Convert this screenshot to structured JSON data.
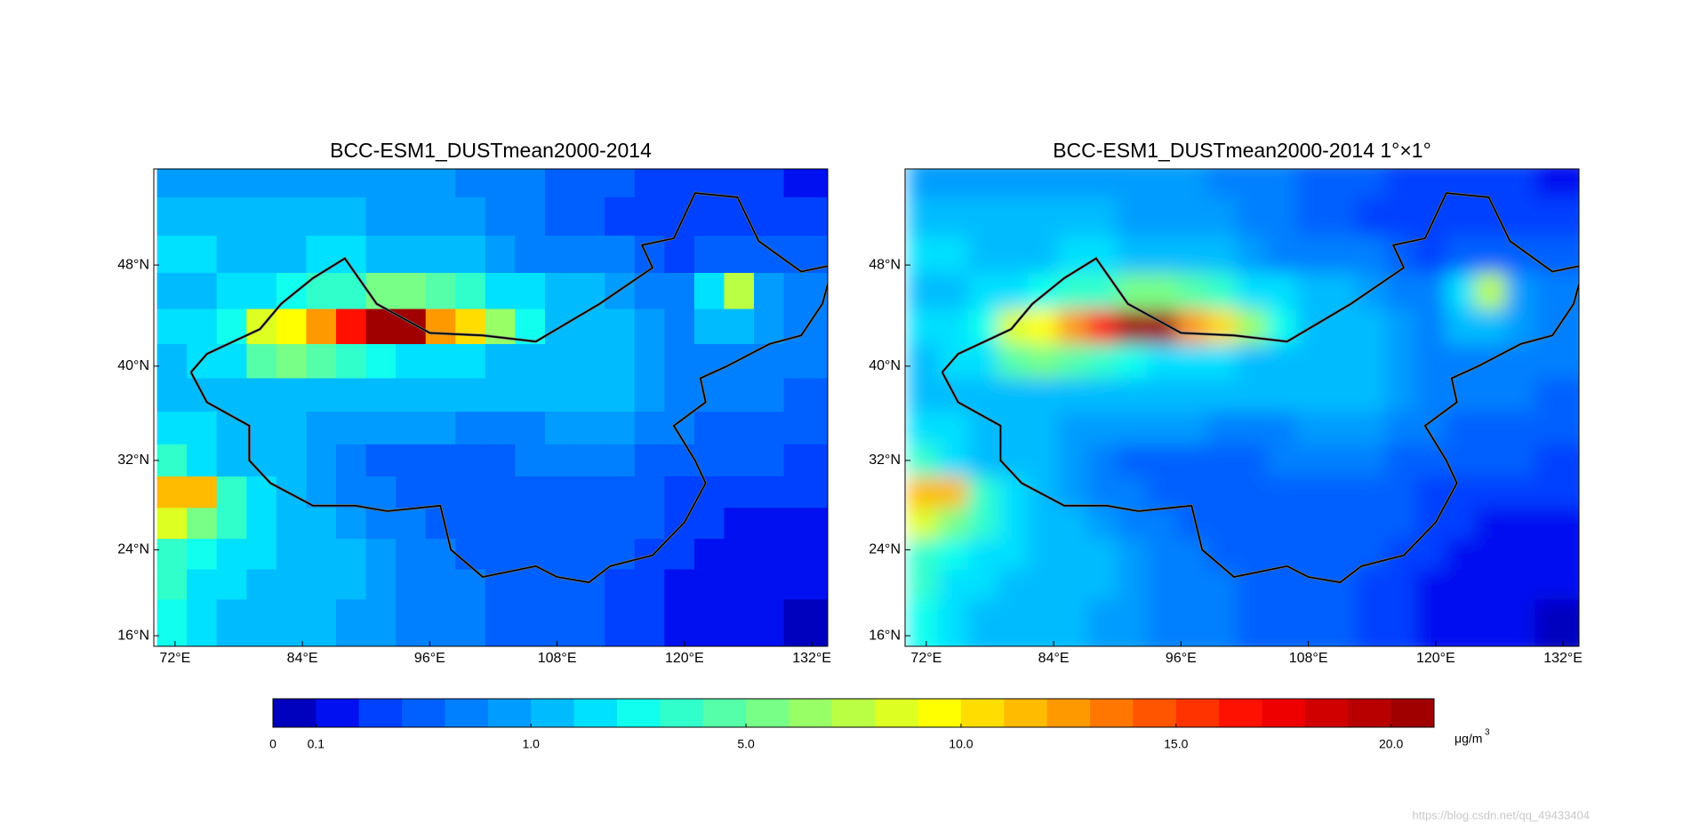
{
  "map_data": {
    "type": "map",
    "panels": [
      {
        "title": "BCC-ESM1_DUSTmean2000-2014",
        "projection": "miller",
        "smooth": false,
        "xlim": [
          70,
          133.5
        ],
        "ylim": [
          15,
          55
        ],
        "xticks": [
          {
            "value": 72,
            "label": "72°E"
          },
          {
            "value": 84,
            "label": "84°E"
          },
          {
            "value": 96,
            "label": "96°E"
          },
          {
            "value": 108,
            "label": "108°E"
          },
          {
            "value": 120,
            "label": "120°E"
          },
          {
            "value": 132,
            "label": "132°E"
          }
        ],
        "yticks": [
          {
            "value": 16,
            "label": "16°N"
          },
          {
            "value": 24,
            "label": "24°N"
          },
          {
            "value": 32,
            "label": "32°N"
          },
          {
            "value": 40,
            "label": "40°N"
          },
          {
            "value": 48,
            "label": "48°N"
          }
        ],
        "grid": {
          "lon_start": 70.3,
          "lon_step": 2.8125,
          "lat_start": 55.8,
          "lat_step": -2.8,
          "values": [
            [
              0.9,
              0.9,
              0.9,
              0.9,
              0.9,
              0.9,
              0.9,
              0.9,
              0.9,
              0.9,
              0.8,
              0.8,
              0.7,
              0.6,
              0.6,
              0.5,
              0.4,
              0.3,
              0.3,
              0.3,
              0.3,
              0.2,
              0.2
            ],
            [
              1.2,
              1.2,
              1.2,
              1.2,
              1.0,
              1.0,
              1.0,
              0.9,
              0.9,
              0.9,
              0.9,
              0.8,
              0.7,
              0.6,
              0.5,
              0.4,
              0.3,
              0.3,
              0.4,
              0.4,
              0.4,
              0.4,
              0.4
            ],
            [
              2.0,
              2.0,
              1.5,
              1.5,
              1.5,
              1.8,
              1.8,
              1.5,
              1.5,
              1.2,
              1.0,
              0.9,
              0.8,
              0.8,
              0.8,
              0.7,
              0.6,
              0.4,
              0.6,
              0.6,
              0.6,
              0.5,
              0.5
            ],
            [
              1.5,
              1.5,
              2.2,
              2.4,
              2.6,
              3.5,
              4.0,
              5.0,
              5.5,
              4.5,
              3.5,
              2.5,
              1.8,
              1.2,
              1.0,
              0.9,
              0.8,
              0.7,
              2.0,
              7.5,
              0.9,
              0.8,
              0.7
            ],
            [
              2.0,
              2.5,
              3.0,
              8.5,
              9.5,
              12.0,
              16.0,
              21.0,
              21.0,
              12.5,
              10.5,
              6.0,
              3.0,
              1.5,
              1.2,
              1.0,
              0.9,
              0.8,
              1.0,
              1.5,
              0.9,
              0.8,
              0.8
            ],
            [
              1.5,
              2.0,
              2.5,
              4.5,
              5.0,
              4.5,
              4.0,
              3.0,
              2.5,
              2.5,
              2.0,
              1.5,
              1.5,
              1.5,
              1.2,
              1.0,
              0.9,
              0.8,
              0.8,
              0.8,
              0.7,
              0.7,
              0.7
            ],
            [
              1.5,
              1.5,
              1.5,
              1.2,
              1.2,
              1.2,
              1.2,
              1.2,
              1.2,
              1.2,
              1.2,
              1.2,
              1.2,
              1.2,
              1.0,
              1.0,
              0.9,
              0.8,
              0.8,
              0.8,
              0.7,
              0.6,
              0.6
            ],
            [
              2.5,
              1.8,
              1.5,
              1.2,
              1.0,
              0.9,
              0.9,
              0.9,
              0.9,
              0.9,
              0.8,
              0.8,
              0.8,
              0.9,
              0.9,
              0.9,
              0.8,
              0.7,
              0.6,
              0.6,
              0.6,
              0.5,
              0.5
            ],
            [
              3.5,
              2.5,
              1.5,
              1.2,
              1.0,
              0.9,
              0.8,
              0.6,
              0.6,
              0.6,
              0.6,
              0.6,
              0.8,
              0.8,
              0.8,
              0.7,
              0.6,
              0.6,
              0.5,
              0.5,
              0.5,
              0.4,
              0.4
            ],
            [
              11.0,
              11.0,
              4.0,
              2.0,
              1.2,
              0.9,
              0.8,
              0.7,
              0.6,
              0.6,
              0.6,
              0.6,
              0.6,
              0.6,
              0.6,
              0.6,
              0.5,
              0.4,
              0.3,
              0.3,
              0.3,
              0.3,
              0.3
            ],
            [
              8.0,
              5.0,
              3.5,
              2.2,
              1.5,
              1.0,
              0.9,
              0.8,
              0.7,
              0.6,
              0.6,
              0.6,
              0.6,
              0.6,
              0.6,
              0.5,
              0.5,
              0.4,
              0.3,
              0.2,
              0.2,
              0.2,
              0.2
            ],
            [
              4.0,
              3.0,
              2.5,
              1.8,
              1.5,
              1.0,
              1.0,
              0.9,
              0.8,
              0.7,
              0.6,
              0.6,
              0.6,
              0.6,
              0.5,
              0.5,
              0.4,
              0.3,
              0.2,
              0.2,
              0.2,
              0.2,
              0.2
            ],
            [
              4.0,
              2.0,
              1.8,
              1.5,
              1.2,
              1.0,
              1.0,
              0.9,
              0.8,
              0.7,
              0.7,
              0.6,
              0.6,
              0.6,
              0.5,
              0.4,
              0.3,
              0.2,
              0.2,
              0.2,
              0.2,
              0.2,
              0.2
            ],
            [
              3.0,
              1.8,
              1.5,
              1.2,
              1.0,
              1.0,
              0.9,
              0.9,
              0.8,
              0.7,
              0.7,
              0.6,
              0.6,
              0.5,
              0.5,
              0.4,
              0.3,
              0.2,
              0.2,
              0.2,
              0.2,
              0.05,
              0.05
            ],
            [
              3.0,
              1.8,
              1.5,
              1.2,
              1.0,
              1.0,
              0.9,
              0.9,
              0.8,
              0.7,
              0.7,
              0.6,
              0.6,
              0.5,
              0.5,
              0.4,
              0.3,
              0.2,
              0.2,
              0.2,
              0.2,
              0.05,
              0.05
            ]
          ]
        }
      },
      {
        "title": "BCC-ESM1_DUSTmean2000-2014 1°×1°",
        "projection": "miller",
        "smooth": true,
        "xlim": [
          70,
          133.5
        ],
        "ylim": [
          15,
          55
        ],
        "xticks": [
          {
            "value": 72,
            "label": "72°E"
          },
          {
            "value": 84,
            "label": "84°E"
          },
          {
            "value": 96,
            "label": "96°E"
          },
          {
            "value": 108,
            "label": "108°E"
          },
          {
            "value": 120,
            "label": "120°E"
          },
          {
            "value": 132,
            "label": "132°E"
          }
        ],
        "yticks": [
          {
            "value": 16,
            "label": "16°N"
          },
          {
            "value": 24,
            "label": "24°N"
          },
          {
            "value": 32,
            "label": "32°N"
          },
          {
            "value": 40,
            "label": "40°N"
          },
          {
            "value": 48,
            "label": "48°N"
          }
        ]
      }
    ],
    "colorbar": {
      "levels": [
        0,
        0.1,
        0.28,
        0.46,
        0.64,
        0.82,
        1,
        1.8,
        2.6,
        3.4,
        4.2,
        5,
        6,
        7,
        8,
        9,
        10,
        11,
        12,
        13,
        14,
        15,
        16,
        17,
        18,
        19,
        20
      ],
      "colors": [
        "#0000bf",
        "#0010f0",
        "#0040ff",
        "#0060ff",
        "#0080ff",
        "#009cff",
        "#00bcff",
        "#00e0ff",
        "#10ffee",
        "#30ffcc",
        "#55ffaa",
        "#77ff88",
        "#99ff66",
        "#bbff44",
        "#ddff22",
        "#ffff00",
        "#ffdd00",
        "#ffbb00",
        "#ff9900",
        "#ff7700",
        "#ff5500",
        "#ff3300",
        "#ff1100",
        "#ee0000",
        "#d00000",
        "#b80000",
        "#a00000"
      ],
      "ticks": [
        0,
        0.1,
        {
          "value": 1,
          "label": "1.0"
        },
        {
          "value": 5,
          "label": "5.0"
        },
        {
          "value": 10,
          "label": "10.0"
        },
        {
          "value": 15,
          "label": "15.0"
        },
        {
          "value": 20,
          "label": "20.0"
        }
      ],
      "unit": {
        "base": "μg/m",
        "sup": "3"
      }
    },
    "watermark": "https://blog.csdn.net/qq_49433404"
  }
}
